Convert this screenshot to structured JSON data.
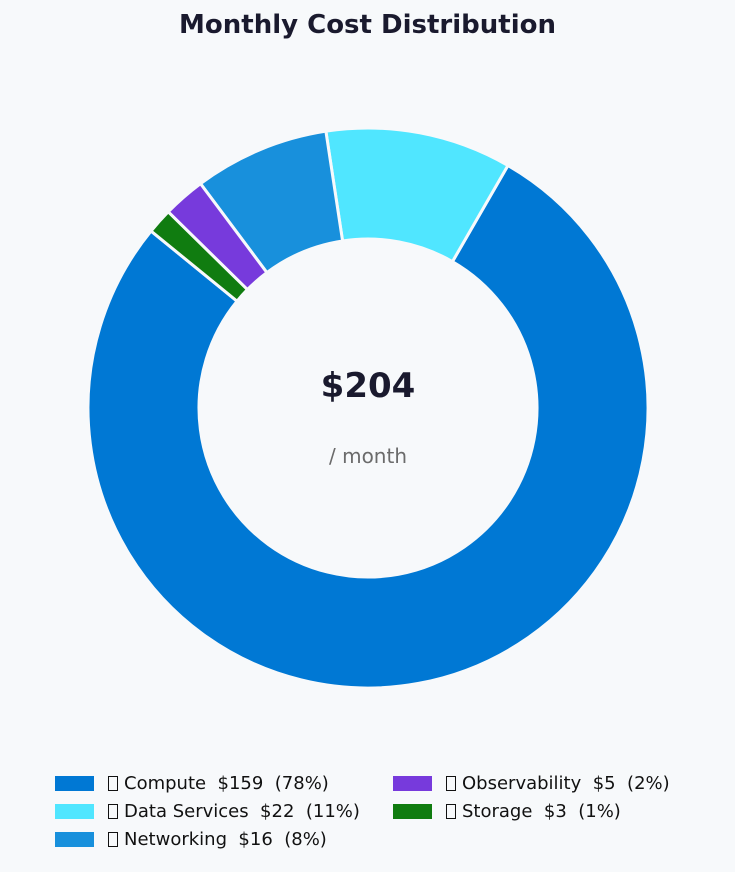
{
  "title": "Monthly Cost Distribution",
  "center": {
    "total": "$204",
    "subtitle": "/ month"
  },
  "legend": [
    {
      "label": "Compute  $159  (78%)",
      "color": "#0078d4"
    },
    {
      "label": "Data Services  $22  (11%)",
      "color": "#50e6ff"
    },
    {
      "label": "Networking  $16  (8%)",
      "color": "#1890dc"
    },
    {
      "label": "Observability  $5  (2%)",
      "color": "#773adc"
    },
    {
      "label": "Storage  $3  (1%)",
      "color": "#107c10"
    }
  ],
  "chart_data": {
    "type": "pie",
    "subtype": "donut",
    "title": "Monthly Cost Distribution",
    "center_label": "$204 / month",
    "categories": [
      "Compute",
      "Data Services",
      "Networking",
      "Observability",
      "Storage"
    ],
    "values": [
      159,
      22,
      16,
      5,
      3
    ],
    "percentages": [
      78,
      11,
      8,
      2,
      1
    ],
    "colors": [
      "#0078d4",
      "#50e6ff",
      "#1890dc",
      "#773adc",
      "#107c10"
    ],
    "legend_position": "bottom"
  }
}
